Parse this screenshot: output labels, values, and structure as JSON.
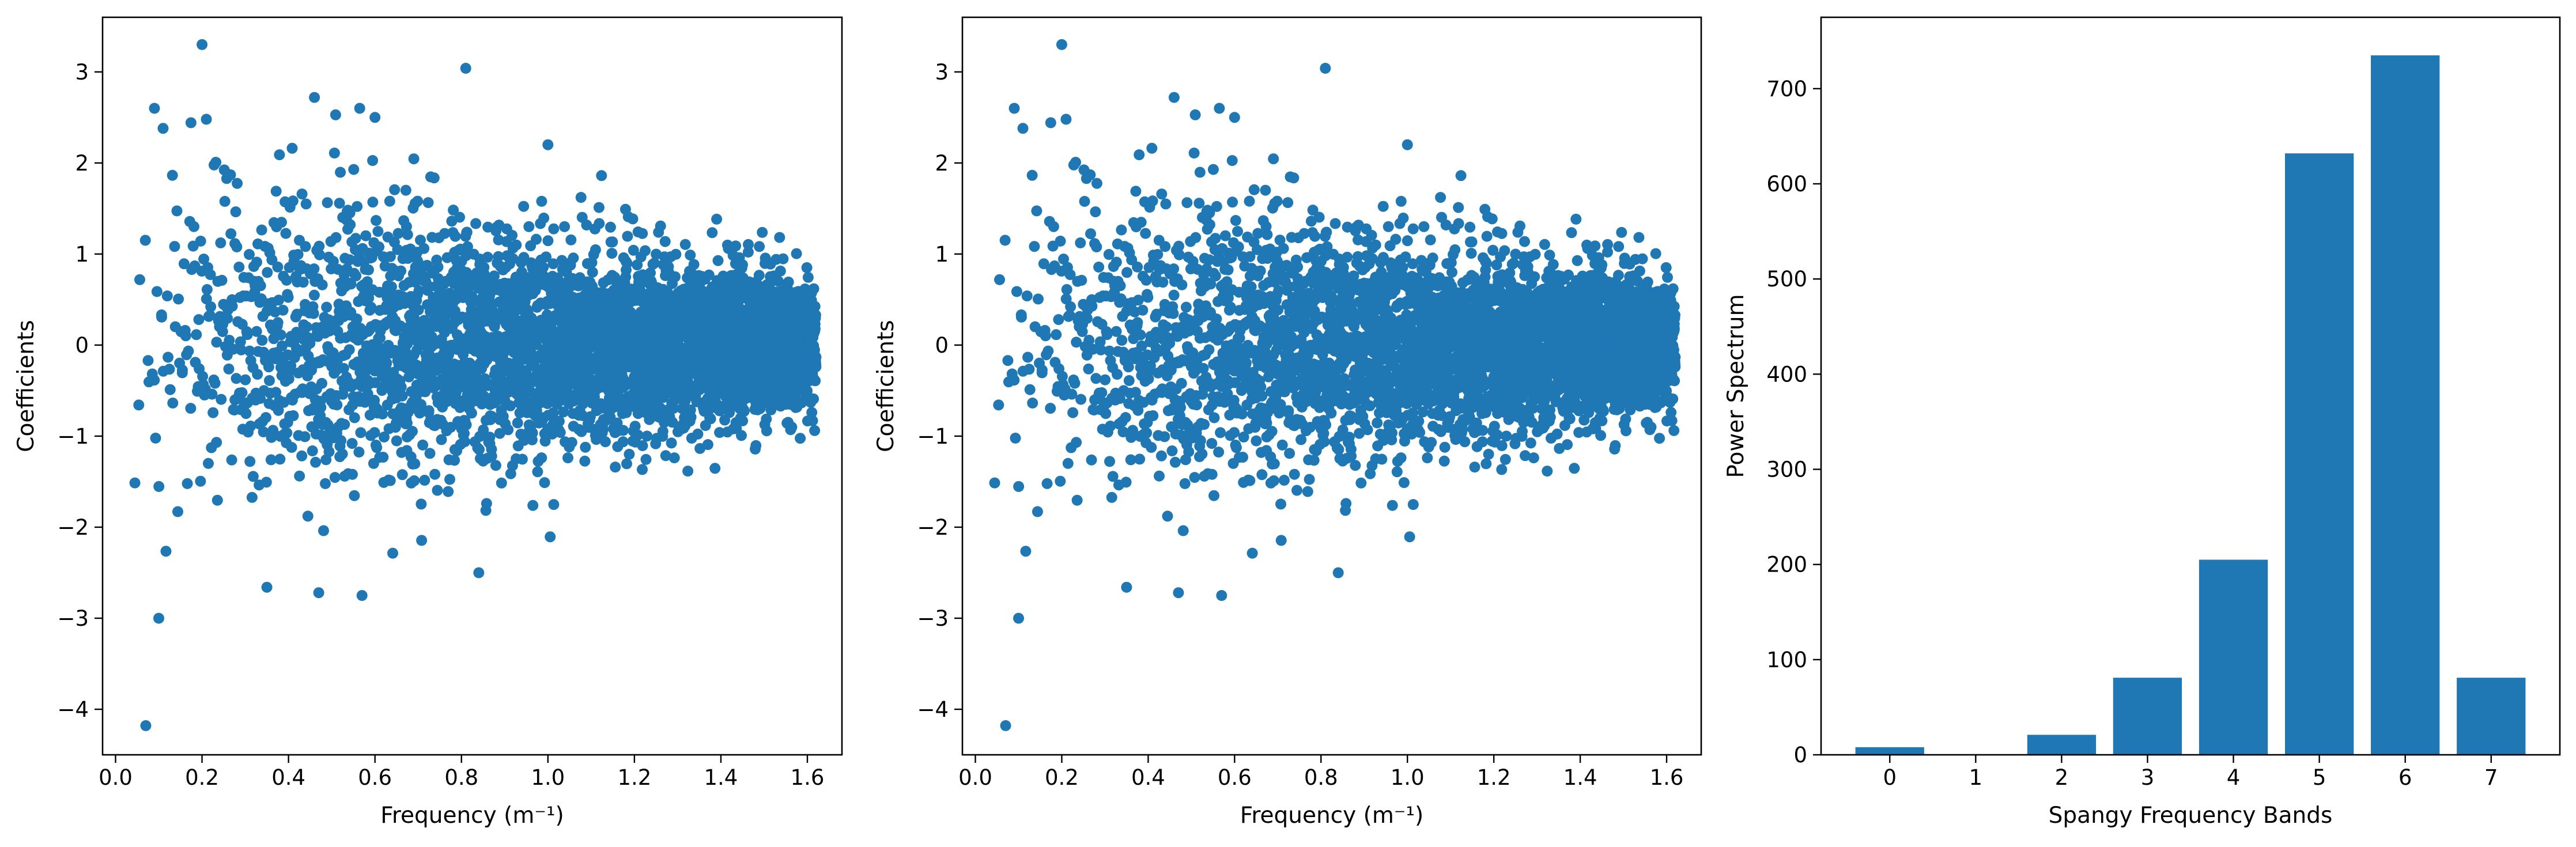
{
  "colors": {
    "series": "#1f77b4",
    "axes": "#000000",
    "background": "#ffffff"
  },
  "chart_data": [
    {
      "type": "scatter",
      "xlabel": "Frequency (m⁻¹)",
      "ylabel": "Coefficients",
      "xlim": [
        -0.03,
        1.68
      ],
      "ylim": [
        -4.5,
        3.6
      ],
      "xticks": [
        0.0,
        0.2,
        0.4,
        0.6,
        0.8,
        1.0,
        1.2,
        1.4,
        1.6
      ],
      "xtick_labels": [
        "0.0",
        "0.2",
        "0.4",
        "0.6",
        "0.8",
        "1.0",
        "1.2",
        "1.4",
        "1.6"
      ],
      "yticks": [
        -4,
        -3,
        -2,
        -1,
        0,
        1,
        2,
        3
      ],
      "ytick_labels": [
        "−4",
        "−3",
        "−2",
        "−1",
        "0",
        "1",
        "2",
        "3"
      ],
      "grid": false,
      "x_range": [
        0.02,
        1.62
      ],
      "point_count": 4096,
      "spread_near_zero": 1.0,
      "spread_at_max": 0.33,
      "outliers": [
        {
          "x": 0.2,
          "y": 3.3
        },
        {
          "x": 0.81,
          "y": 3.04
        },
        {
          "x": 0.07,
          "y": -4.18
        },
        {
          "x": 0.1,
          "y": -3.0
        },
        {
          "x": 0.84,
          "y": -2.5
        },
        {
          "x": 0.46,
          "y": 2.72
        },
        {
          "x": 0.09,
          "y": 2.6
        },
        {
          "x": 0.11,
          "y": 2.38
        },
        {
          "x": 0.21,
          "y": 2.48
        },
        {
          "x": 0.35,
          "y": -2.66
        },
        {
          "x": 0.6,
          "y": 2.5
        },
        {
          "x": 0.57,
          "y": -2.75
        },
        {
          "x": 0.47,
          "y": -2.72
        },
        {
          "x": 1.0,
          "y": 2.2
        }
      ]
    },
    {
      "type": "scatter",
      "xlabel": "Frequency (m⁻¹)",
      "ylabel": "Coefficients",
      "xlim": [
        -0.03,
        1.68
      ],
      "ylim": [
        -4.5,
        3.6
      ],
      "xticks": [
        0.0,
        0.2,
        0.4,
        0.6,
        0.8,
        1.0,
        1.2,
        1.4,
        1.6
      ],
      "xtick_labels": [
        "0.0",
        "0.2",
        "0.4",
        "0.6",
        "0.8",
        "1.0",
        "1.2",
        "1.4",
        "1.6"
      ],
      "yticks": [
        -4,
        -3,
        -2,
        -1,
        0,
        1,
        2,
        3
      ],
      "ytick_labels": [
        "−4",
        "−3",
        "−2",
        "−1",
        "0",
        "1",
        "2",
        "3"
      ],
      "grid": false,
      "x_range": [
        0.02,
        1.62
      ],
      "point_count": 4096,
      "spread_near_zero": 1.0,
      "spread_at_max": 0.33,
      "outliers": [
        {
          "x": 0.2,
          "y": 3.3
        },
        {
          "x": 0.81,
          "y": 3.04
        },
        {
          "x": 0.07,
          "y": -4.18
        },
        {
          "x": 0.1,
          "y": -3.0
        },
        {
          "x": 0.84,
          "y": -2.5
        },
        {
          "x": 0.46,
          "y": 2.72
        },
        {
          "x": 0.09,
          "y": 2.6
        },
        {
          "x": 0.11,
          "y": 2.38
        },
        {
          "x": 0.21,
          "y": 2.48
        },
        {
          "x": 0.35,
          "y": -2.66
        },
        {
          "x": 0.6,
          "y": 2.5
        },
        {
          "x": 0.57,
          "y": -2.75
        },
        {
          "x": 0.47,
          "y": -2.72
        },
        {
          "x": 1.0,
          "y": 2.2
        }
      ]
    },
    {
      "type": "bar",
      "xlabel": "Spangy Frequency Bands",
      "ylabel": "Power Spectrum",
      "categories": [
        "0",
        "1",
        "2",
        "3",
        "4",
        "5",
        "6",
        "7"
      ],
      "values": [
        8,
        0,
        21,
        81,
        205,
        632,
        735,
        81
      ],
      "xlim": [
        -0.8,
        7.8
      ],
      "ylim": [
        0,
        775
      ],
      "yticks": [
        0,
        100,
        200,
        300,
        400,
        500,
        600,
        700
      ],
      "ytick_labels": [
        "0",
        "100",
        "200",
        "300",
        "400",
        "500",
        "600",
        "700"
      ],
      "grid": false
    }
  ]
}
